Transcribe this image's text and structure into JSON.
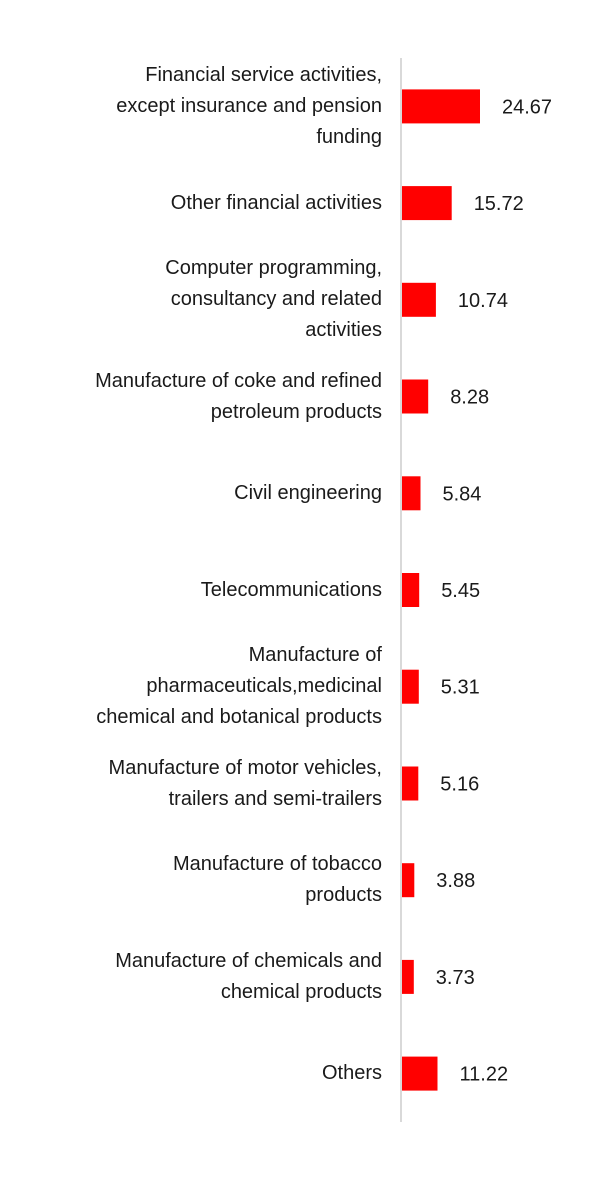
{
  "chart_data": {
    "type": "bar",
    "orientation": "horizontal",
    "categories": [
      [
        "Financial service activities,",
        "except insurance and pension",
        "funding"
      ],
      [
        "Other financial activities"
      ],
      [
        "Computer programming,",
        "consultancy and related",
        "activities"
      ],
      [
        "Manufacture of coke and refined",
        "petroleum products"
      ],
      [
        "Civil engineering"
      ],
      [
        "Telecommunications"
      ],
      [
        "Manufacture of",
        "pharmaceuticals,medicinal",
        "chemical and botanical products"
      ],
      [
        "Manufacture of motor vehicles,",
        "trailers and semi-trailers"
      ],
      [
        "Manufacture of tobacco",
        "products"
      ],
      [
        "Manufacture of chemicals and",
        "chemical products"
      ],
      [
        "Others"
      ]
    ],
    "values": [
      24.67,
      15.72,
      10.74,
      8.28,
      5.84,
      5.45,
      5.31,
      5.16,
      3.88,
      3.73,
      11.22
    ],
    "value_labels": [
      "24.67",
      "15.72",
      "10.74",
      "8.28",
      "5.84",
      "5.45",
      "5.31",
      "5.16",
      "3.88",
      "3.73",
      "11.22"
    ],
    "title": "",
    "xlabel": "",
    "ylabel": "",
    "xlim": [
      0,
      30
    ],
    "grid": false,
    "legend": "none",
    "bar_color": "#ff0000",
    "axis_color": "#d9d9d9"
  }
}
